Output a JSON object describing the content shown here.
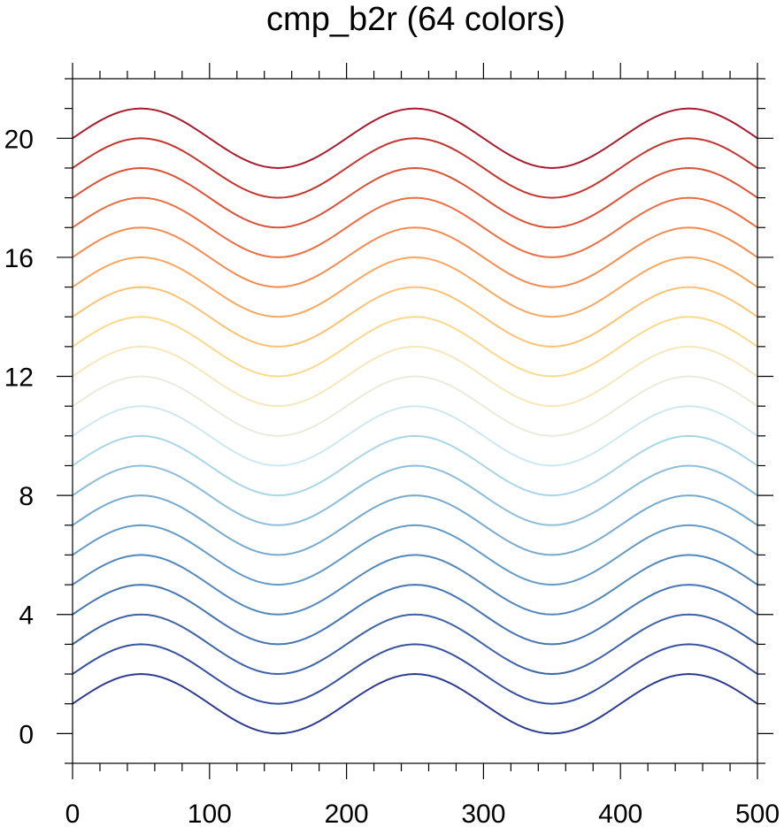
{
  "chart_data": {
    "type": "line",
    "title": "cmp_b2r (64 colors)",
    "xlabel": "",
    "ylabel": "",
    "xlim": [
      0,
      500
    ],
    "ylim": [
      -1,
      22
    ],
    "xticks": [
      0,
      100,
      200,
      300,
      400,
      500
    ],
    "yticks": [
      0,
      4,
      8,
      12,
      16,
      20
    ],
    "x_minor_step": 20,
    "y_minor_step": 1,
    "grid": false,
    "legend": "none",
    "function": "y = offset + sin(2*pi*x/200)",
    "x_step": 5,
    "series": [
      {
        "offset": 1,
        "color": "#2c3a8f"
      },
      {
        "offset": 2,
        "color": "#35509d"
      },
      {
        "offset": 3,
        "color": "#3e63a8"
      },
      {
        "offset": 4,
        "color": "#4676b3"
      },
      {
        "offset": 5,
        "color": "#5388bd"
      },
      {
        "offset": 6,
        "color": "#649ac6"
      },
      {
        "offset": 7,
        "color": "#77aacf"
      },
      {
        "offset": 8,
        "color": "#8dbfdb"
      },
      {
        "offset": 9,
        "color": "#a9d6e7"
      },
      {
        "offset": 10,
        "color": "#cde9f0"
      },
      {
        "offset": 11,
        "color": "#e9ecdc"
      },
      {
        "offset": 12,
        "color": "#f6e8bc"
      },
      {
        "offset": 13,
        "color": "#fbd98e"
      },
      {
        "offset": 14,
        "color": "#fbc273"
      },
      {
        "offset": 15,
        "color": "#f9a75f"
      },
      {
        "offset": 16,
        "color": "#f48b50"
      },
      {
        "offset": 17,
        "color": "#ea6f45"
      },
      {
        "offset": 18,
        "color": "#da5237"
      },
      {
        "offset": 19,
        "color": "#c4352e"
      },
      {
        "offset": 20,
        "color": "#a81a2c"
      }
    ]
  }
}
